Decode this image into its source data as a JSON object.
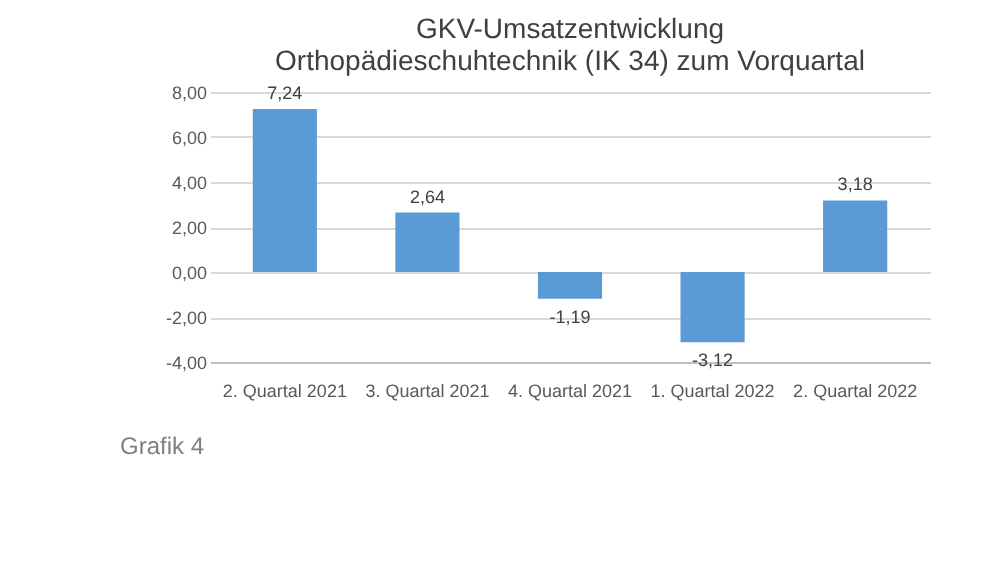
{
  "chart_data": {
    "type": "bar",
    "title": "GKV-Umsatzentwicklung\nOrthopädieschuhtechnik (IK 34) zum Vorquartal",
    "categories": [
      "2. Quartal 2021",
      "3. Quartal 2021",
      "4. Quartal 2021",
      "1. Quartal 2022",
      "2. Quartal 2022"
    ],
    "values": [
      7.24,
      2.64,
      -1.19,
      -3.12,
      3.18
    ],
    "value_labels": [
      "7,24",
      "2,64",
      "-1,19",
      "-3,12",
      "3,18"
    ],
    "color": "#5b9bd5",
    "ylim": [
      -4,
      8
    ],
    "yticks": [
      {
        "value": -4,
        "label": "-4,00"
      },
      {
        "value": -2,
        "label": "-2,00"
      },
      {
        "value": 0,
        "label": "0,00"
      },
      {
        "value": 2,
        "label": "2,00"
      },
      {
        "value": 4,
        "label": "4,00"
      },
      {
        "value": 6,
        "label": "6,00"
      },
      {
        "value": 8,
        "label": "8,00"
      }
    ],
    "grid": "y",
    "annotations": [
      "Grafik 4"
    ]
  }
}
